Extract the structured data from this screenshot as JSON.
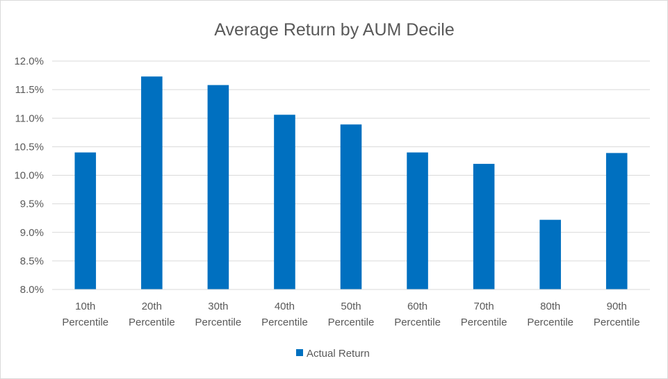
{
  "chart_data": {
    "type": "bar",
    "title": "Average Return by AUM Decile",
    "xlabel": "",
    "ylabel": "",
    "categories": [
      [
        "10th",
        "Percentile"
      ],
      [
        "20th",
        "Percentile"
      ],
      [
        "30th",
        "Percentile"
      ],
      [
        "40th",
        "Percentile"
      ],
      [
        "50th",
        "Percentile"
      ],
      [
        "60th",
        "Percentile"
      ],
      [
        "70th",
        "Percentile"
      ],
      [
        "80th",
        "Percentile"
      ],
      [
        "90th",
        "Percentile"
      ]
    ],
    "series": [
      {
        "name": "Actual Return",
        "color": "#0070c0",
        "values": [
          10.4,
          11.73,
          11.58,
          11.06,
          10.89,
          10.4,
          10.2,
          9.22,
          10.39
        ]
      }
    ],
    "ylim": [
      8.0,
      12.0
    ],
    "yticks": [
      8.0,
      8.5,
      9.0,
      9.5,
      10.0,
      10.5,
      11.0,
      11.5,
      12.0
    ],
    "ytick_labels": [
      "8.0%",
      "8.5%",
      "9.0%",
      "9.5%",
      "10.0%",
      "10.5%",
      "11.0%",
      "11.5%",
      "12.0%"
    ],
    "grid": true,
    "legend": "bottom"
  }
}
